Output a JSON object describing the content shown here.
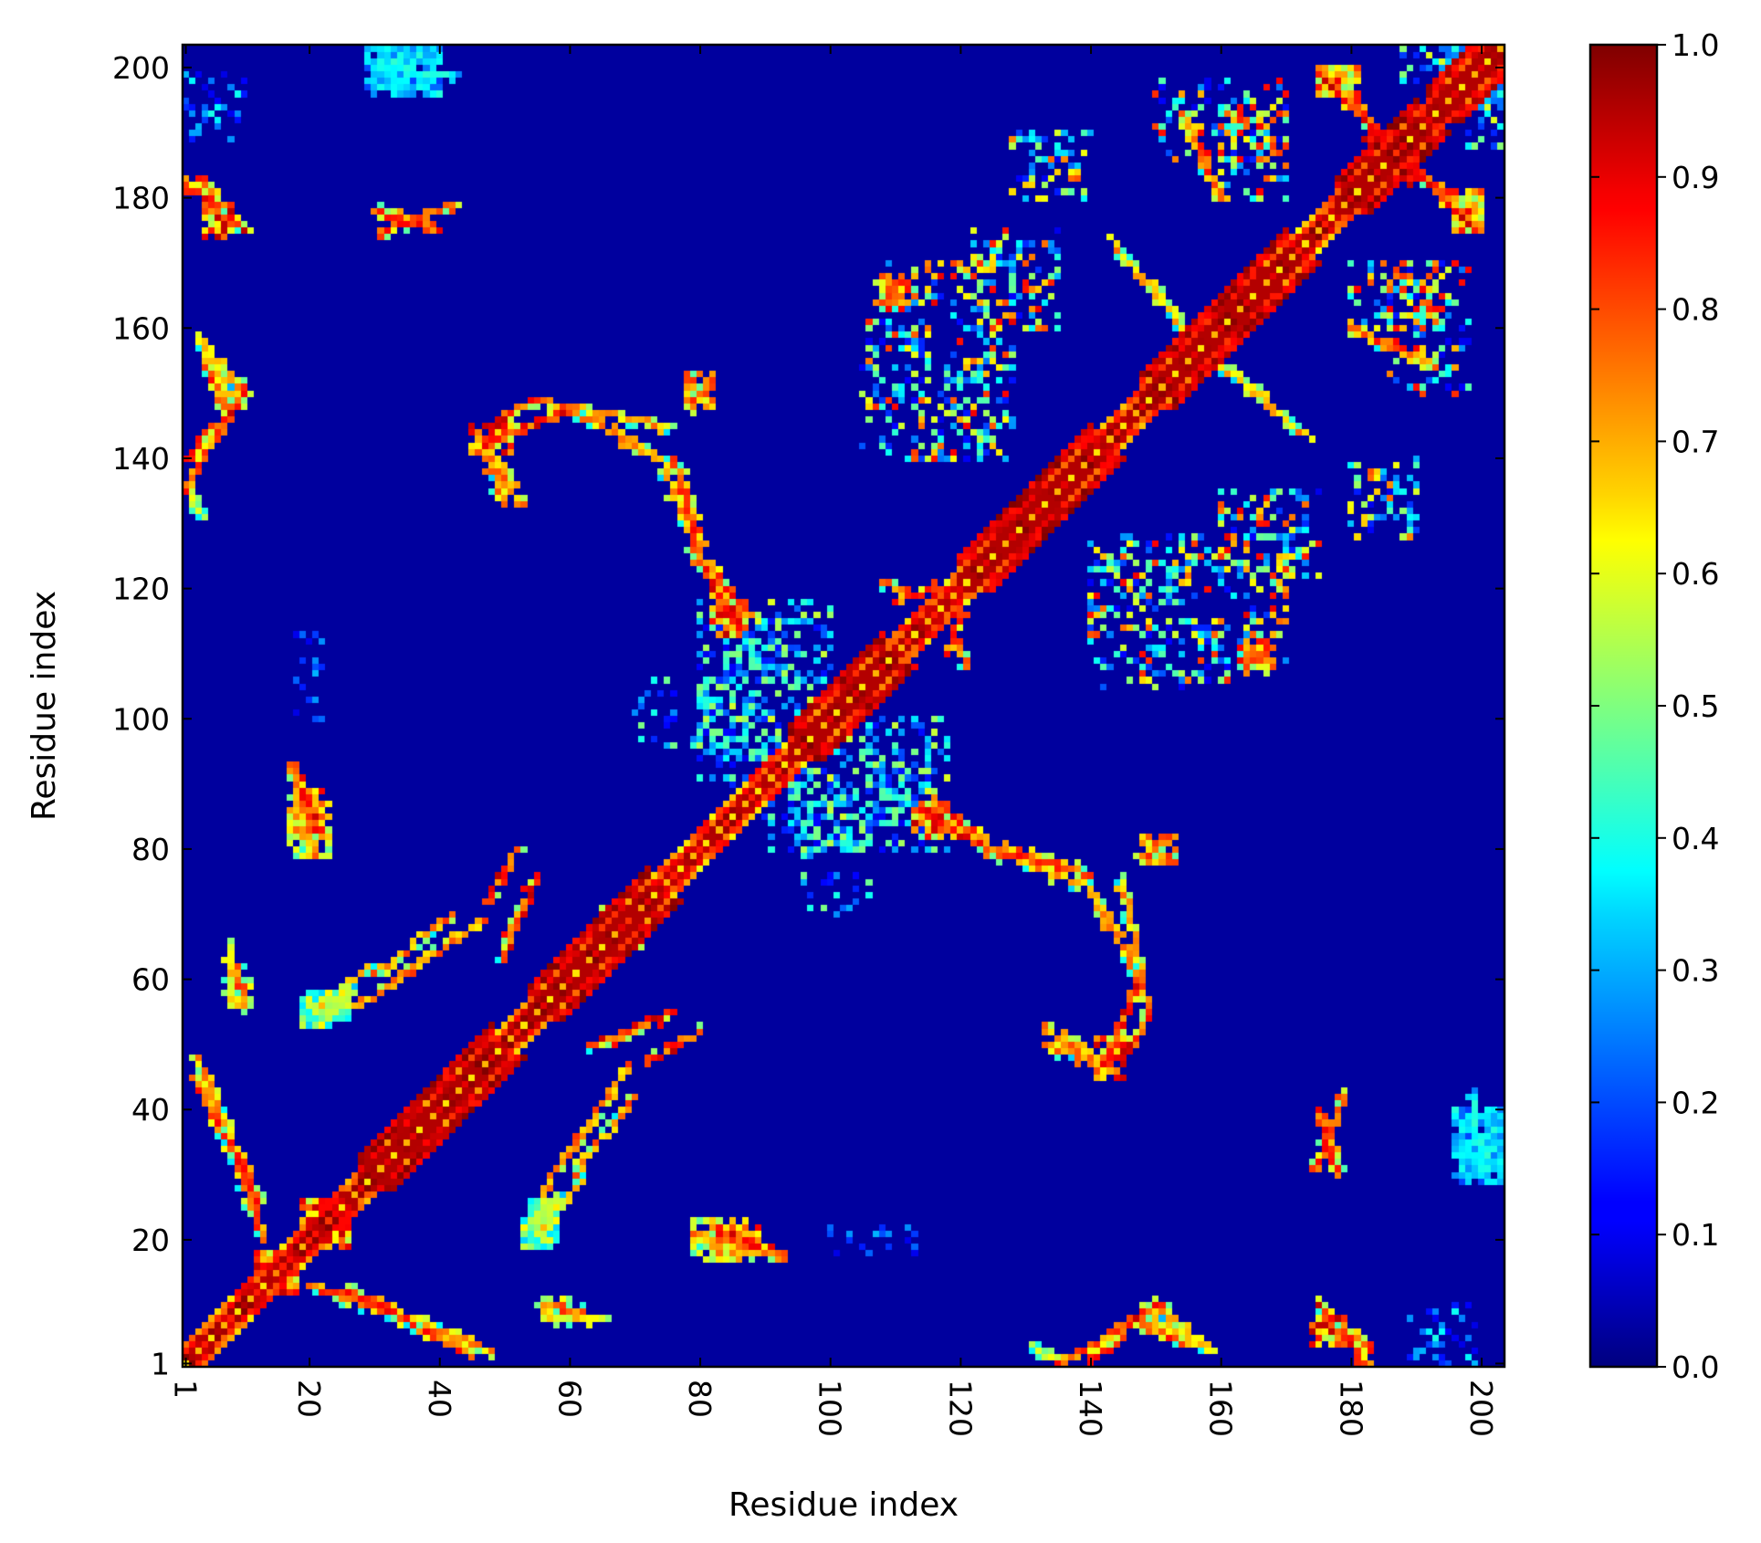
{
  "chart_data": {
    "type": "heatmap",
    "title": "",
    "xlabel": "Residue index",
    "ylabel": "Residue index",
    "n": 203,
    "xlim": [
      1,
      203
    ],
    "ylim": [
      1,
      203
    ],
    "x_ticks": [
      1,
      20,
      40,
      60,
      80,
      100,
      120,
      140,
      160,
      180,
      200
    ],
    "y_ticks": [
      1,
      20,
      40,
      60,
      80,
      100,
      120,
      140,
      160,
      180,
      200
    ],
    "x_tick_labels": [
      "1",
      "20",
      "40",
      "60",
      "80",
      "100",
      "120",
      "140",
      "160",
      "180",
      "200"
    ],
    "y_tick_labels": [
      "1",
      "20",
      "40",
      "60",
      "80",
      "100",
      "120",
      "140",
      "160",
      "180",
      "200"
    ],
    "x_tick_rotation": 90,
    "colormap": "jet",
    "colorbar": {
      "range": [
        0.0,
        1.0
      ],
      "ticks": [
        0.0,
        0.1,
        0.2,
        0.3,
        0.4,
        0.5,
        0.6,
        0.7,
        0.8,
        0.9,
        1.0
      ],
      "tick_labels": [
        "0.0",
        "0.1",
        "0.2",
        "0.3",
        "0.4",
        "0.5",
        "0.6",
        "0.7",
        "0.8",
        "0.9",
        "1.0"
      ]
    },
    "background_value": 0.03,
    "symmetric": true,
    "diagonal_band": {
      "description": "near-diagonal contacts",
      "value_min": 0.55,
      "value_max": 1.0
    },
    "thick_diagonal_segments": [
      [
        28,
        48
      ],
      [
        54,
        72
      ],
      [
        94,
        108
      ],
      [
        120,
        140
      ],
      [
        148,
        170
      ],
      [
        178,
        190
      ],
      [
        192,
        203
      ]
    ],
    "contact_segments": [
      {
        "from": [
          3,
          183
        ],
        "to": [
          10,
          175
        ],
        "value": 0.9
      },
      {
        "from": [
          1,
          140
        ],
        "to": [
          10,
          150
        ],
        "value": 0.9
      },
      {
        "from": [
          4,
          155
        ],
        "to": [
          6,
          150
        ],
        "value": 0.85
      },
      {
        "from": [
          1,
          135
        ],
        "to": [
          4,
          131
        ],
        "value": 0.6
      },
      {
        "from": [
          31,
          175
        ],
        "to": [
          42,
          179
        ],
        "value": 0.85
      },
      {
        "from": [
          30,
          200
        ],
        "to": [
          42,
          199
        ],
        "value": 0.4
      },
      {
        "from": [
          45,
          144
        ],
        "to": [
          55,
          149
        ],
        "value": 0.9
      },
      {
        "from": [
          47,
          143
        ],
        "to": [
          52,
          133
        ],
        "value": 0.8
      },
      {
        "from": [
          55,
          149
        ],
        "to": [
          75,
          145
        ],
        "value": 0.75
      },
      {
        "from": [
          76,
          140
        ],
        "to": [
          80,
          126
        ],
        "value": 0.85
      },
      {
        "from": [
          81,
          124
        ],
        "to": [
          87,
          116
        ],
        "value": 0.85
      },
      {
        "from": [
          79,
          148
        ],
        "to": [
          81,
          152
        ],
        "value": 0.85
      },
      {
        "from": [
          17,
          93
        ],
        "to": [
          22,
          82
        ],
        "value": 0.9
      },
      {
        "from": [
          9,
          62
        ],
        "to": [
          10,
          56
        ],
        "value": 0.8
      },
      {
        "from": [
          21,
          55
        ],
        "to": [
          29,
          62
        ],
        "value": 0.7
      },
      {
        "from": [
          30,
          61
        ],
        "to": [
          42,
          70
        ],
        "value": 0.8
      },
      {
        "from": [
          47,
          72
        ],
        "to": [
          52,
          80
        ],
        "value": 0.9
      },
      {
        "from": [
          63,
          50
        ],
        "to": [
          76,
          55
        ],
        "value": 0.9
      },
      {
        "from": [
          56,
          28
        ],
        "to": [
          69,
          47
        ],
        "value": 0.8
      },
      {
        "from": [
          53,
          22
        ],
        "to": [
          58,
          27
        ],
        "value": 0.6
      },
      {
        "from": [
          79,
          21
        ],
        "to": [
          92,
          18
        ],
        "value": 0.85
      },
      {
        "from": [
          56,
          8
        ],
        "to": [
          65,
          8
        ],
        "value": 0.7
      },
      {
        "from": [
          20,
          13
        ],
        "to": [
          35,
          8
        ],
        "value": 0.85
      },
      {
        "from": [
          36,
          8
        ],
        "to": [
          48,
          3
        ],
        "value": 0.75
      },
      {
        "from": [
          2,
          45
        ],
        "to": [
          12,
          26
        ],
        "value": 0.85
      },
      {
        "from": [
          114,
          86
        ],
        "to": [
          124,
          80
        ],
        "value": 0.9
      },
      {
        "from": [
          124,
          80
        ],
        "to": [
          138,
          75
        ],
        "value": 0.8
      },
      {
        "from": [
          139,
          75
        ],
        "to": [
          147,
          60
        ],
        "value": 0.75
      },
      {
        "from": [
          147,
          60
        ],
        "to": [
          143,
          49
        ],
        "value": 0.9
      },
      {
        "from": [
          133,
          50
        ],
        "to": [
          143,
          47
        ],
        "value": 0.8
      },
      {
        "from": [
          108,
          121
        ],
        "to": [
          113,
          119
        ],
        "value": 0.85
      },
      {
        "from": [
          118,
          110
        ],
        "to": [
          120,
          116
        ],
        "value": 0.85
      },
      {
        "from": [
          135,
          1
        ],
        "to": [
          150,
          10
        ],
        "value": 0.85
      },
      {
        "from": [
          150,
          10
        ],
        "to": [
          158,
          3
        ],
        "value": 0.7
      },
      {
        "from": [
          175,
          10
        ],
        "to": [
          182,
          1
        ],
        "value": 0.9
      },
      {
        "from": [
          175,
          40
        ],
        "to": [
          178,
          30
        ],
        "value": 0.85
      },
      {
        "from": [
          176,
          198
        ],
        "to": [
          190,
          184
        ],
        "value": 0.9
      },
      {
        "from": [
          190,
          184
        ],
        "to": [
          200,
          175
        ],
        "value": 0.9
      },
      {
        "from": [
          143,
          174
        ],
        "to": [
          154,
          160
        ],
        "value": 0.75
      },
      {
        "from": [
          180,
          160
        ],
        "to": [
          192,
          155
        ],
        "value": 0.85
      }
    ],
    "contact_patches": [
      {
        "center": [
          84,
          117
        ],
        "size": [
          5,
          4
        ],
        "value": 0.9
      },
      {
        "center": [
          80,
          151
        ],
        "size": [
          4,
          5
        ],
        "value": 0.8
      },
      {
        "center": [
          20,
          86
        ],
        "size": [
          5,
          6
        ],
        "value": 0.85
      },
      {
        "center": [
          10,
          58
        ],
        "size": [
          3,
          5
        ],
        "value": 0.7
      },
      {
        "center": [
          23,
          56
        ],
        "size": [
          6,
          4
        ],
        "value": 0.6
      },
      {
        "center": [
          68,
          68
        ],
        "size": [
          6,
          6
        ],
        "value": 0.85
      },
      {
        "center": [
          55,
          22
        ],
        "size": [
          4,
          6
        ],
        "value": 0.55
      },
      {
        "center": [
          22,
          23
        ],
        "size": [
          6,
          6
        ],
        "value": 0.9
      },
      {
        "center": [
          15,
          15
        ],
        "size": [
          6,
          6
        ],
        "value": 0.9
      },
      {
        "center": [
          35,
          200
        ],
        "size": [
          10,
          8
        ],
        "value": 0.4
      },
      {
        "center": [
          84,
          20
        ],
        "size": [
          10,
          6
        ],
        "value": 0.75
      },
      {
        "center": [
          115,
          85
        ],
        "size": [
          4,
          4
        ],
        "value": 0.9
      },
      {
        "center": [
          150,
          80
        ],
        "size": [
          4,
          4
        ],
        "value": 0.8
      },
      {
        "center": [
          143,
          48
        ],
        "size": [
          4,
          6
        ],
        "value": 0.9
      },
      {
        "center": [
          165,
          110
        ],
        "size": [
          4,
          3
        ],
        "value": 0.85
      },
      {
        "center": [
          110,
          166
        ],
        "size": [
          4,
          4
        ],
        "value": 0.85
      },
      {
        "center": [
          185,
          187
        ],
        "size": [
          6,
          6
        ],
        "value": 0.9
      },
      {
        "center": [
          178,
          198
        ],
        "size": [
          6,
          4
        ],
        "value": 0.85
      },
      {
        "center": [
          198,
          178
        ],
        "size": [
          5,
          6
        ],
        "value": 0.85
      },
      {
        "center": [
          200,
          34
        ],
        "size": [
          7,
          10
        ],
        "value": 0.35
      },
      {
        "center": [
          150,
          8
        ],
        "size": [
          4,
          5
        ],
        "value": 0.75
      },
      {
        "center": [
          176,
          6
        ],
        "size": [
          5,
          5
        ],
        "value": 0.9
      },
      {
        "center": [
          215,
          0
        ],
        "size": [
          0,
          0
        ],
        "value": 0.0
      }
    ],
    "speckle_regions": [
      {
        "x": [
          80,
          92
        ],
        "y": [
          90,
          115
        ],
        "density": 0.35,
        "value_max": 0.5
      },
      {
        "x": [
          94,
          118
        ],
        "y": [
          80,
          100
        ],
        "density": 0.3,
        "value_max": 0.6
      },
      {
        "x": [
          106,
          128
        ],
        "y": [
          140,
          170
        ],
        "density": 0.25,
        "value_max": 0.9
      },
      {
        "x": [
          128,
          140
        ],
        "y": [
          180,
          190
        ],
        "density": 0.3,
        "value_max": 0.8
      },
      {
        "x": [
          160,
          175
        ],
        "y": [
          120,
          135
        ],
        "density": 0.3,
        "value_max": 0.9
      },
      {
        "x": [
          160,
          170
        ],
        "y": [
          180,
          195
        ],
        "density": 0.35,
        "value_max": 0.9
      },
      {
        "x": [
          186,
          198
        ],
        "y": [
          150,
          170
        ],
        "density": 0.25,
        "value_max": 0.9
      },
      {
        "x": [
          183,
          190
        ],
        "y": [
          130,
          138
        ],
        "density": 0.3,
        "value_max": 0.7
      },
      {
        "x": [
          142,
          160
        ],
        "y": [
          105,
          125
        ],
        "density": 0.2,
        "value_max": 0.6
      },
      {
        "x": [
          18,
          22
        ],
        "y": [
          100,
          115
        ],
        "density": 0.2,
        "value_max": 0.3
      },
      {
        "x": [
          185,
          200
        ],
        "y": [
          1,
          10
        ],
        "density": 0.2,
        "value_max": 0.4
      },
      {
        "x": [
          96,
          106
        ],
        "y": [
          70,
          82
        ],
        "density": 0.2,
        "value_max": 0.5
      },
      {
        "x": [
          198,
          203
        ],
        "y": [
          188,
          203
        ],
        "density": 0.4,
        "value_max": 0.6
      }
    ]
  }
}
